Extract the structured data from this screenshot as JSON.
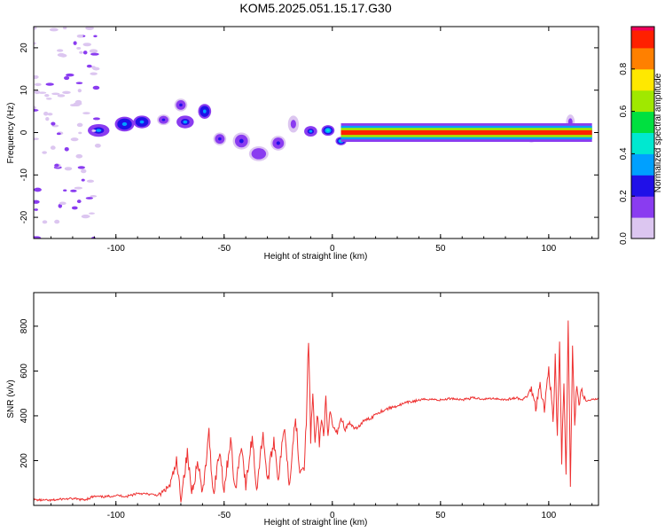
{
  "title": "KOM5.2025.051.15.17.G30",
  "chart_data": [
    {
      "type": "heatmap",
      "xlabel": "Height of straight line (km)",
      "ylabel": "Frequency (Hz)",
      "xlim": [
        -138,
        123
      ],
      "ylim": [
        -25,
        25
      ],
      "xticks": [
        -100,
        -50,
        0,
        50,
        100
      ],
      "yticks": [
        -20,
        -10,
        0,
        10,
        20
      ],
      "colorbar": {
        "label": "Normalized spectral amplitude",
        "range": [
          0,
          1
        ],
        "ticks": [
          0.0,
          0.2,
          0.4,
          0.6,
          0.8
        ],
        "colors": [
          "#dcc6f0",
          "#8a3cf0",
          "#2010e8",
          "#00a0ff",
          "#00e8d0",
          "#00e040",
          "#a0e800",
          "#ffe800",
          "#ff8000",
          "#ff2000",
          "#f0005a"
        ]
      },
      "blobs": [
        {
          "x": -108,
          "y": 0.5,
          "w": 10,
          "h": 3,
          "v": 0.3
        },
        {
          "x": -96,
          "y": 2,
          "w": 9,
          "h": 3.5,
          "v": 0.35
        },
        {
          "x": -88,
          "y": 2.5,
          "w": 8,
          "h": 3,
          "v": 0.35
        },
        {
          "x": -78,
          "y": 3,
          "w": 6,
          "h": 2.5,
          "v": 0.25
        },
        {
          "x": -70,
          "y": 6.5,
          "w": 6,
          "h": 3,
          "v": 0.2
        },
        {
          "x": -68,
          "y": 2.5,
          "w": 8,
          "h": 3,
          "v": 0.3
        },
        {
          "x": -59,
          "y": 5,
          "w": 6,
          "h": 3.5,
          "v": 0.35
        },
        {
          "x": -52,
          "y": -1.5,
          "w": 6,
          "h": 3,
          "v": 0.22
        },
        {
          "x": -42,
          "y": -2,
          "w": 8,
          "h": 4,
          "v": 0.2
        },
        {
          "x": -34,
          "y": -5,
          "w": 9,
          "h": 3.5,
          "v": 0.18
        },
        {
          "x": -25,
          "y": -2.5,
          "w": 7,
          "h": 3.5,
          "v": 0.2
        },
        {
          "x": -18,
          "y": 2,
          "w": 5,
          "h": 4,
          "v": 0.15
        },
        {
          "x": -10,
          "y": 0.3,
          "w": 6,
          "h": 2.5,
          "v": 0.3
        },
        {
          "x": -2,
          "y": 0.5,
          "w": 6,
          "h": 2.5,
          "v": 0.4
        },
        {
          "x": 4,
          "y": -2,
          "w": 5,
          "h": 2,
          "v": 0.4
        },
        {
          "x": 25,
          "y": 0,
          "w": 8,
          "h": 2,
          "v": 0.45
        },
        {
          "x": 60,
          "y": 0,
          "w": 12,
          "h": 1.5,
          "v": 0.6
        },
        {
          "x": 92,
          "y": -1,
          "w": 8,
          "h": 2.5,
          "v": 0.35
        },
        {
          "x": 103,
          "y": -0.8,
          "w": 7,
          "h": 2.5,
          "v": 0.35
        },
        {
          "x": 110,
          "y": 2.5,
          "w": 4,
          "h": 3.5,
          "v": 0.15
        }
      ],
      "ridge": {
        "x": [
          4,
          120
        ],
        "y": 0,
        "v": 0.95
      }
    },
    {
      "type": "line",
      "xlabel": "Height of straight line (km)",
      "ylabel": "SNR (v/v)",
      "xlim": [
        -138,
        123
      ],
      "ylim": [
        0,
        950
      ],
      "xticks": [
        -100,
        -50,
        0,
        50,
        100
      ],
      "yticks": [
        200,
        400,
        600,
        800
      ],
      "color": "#ee3030",
      "x": [
        -138,
        -130,
        -125,
        -120,
        -115,
        -110,
        -105,
        -100,
        -95,
        -90,
        -85,
        -80,
        -75,
        -72,
        -70,
        -67,
        -65,
        -62,
        -60,
        -57,
        -55,
        -52,
        -50,
        -47,
        -45,
        -42,
        -40,
        -37,
        -35,
        -32,
        -30,
        -27,
        -25,
        -22,
        -20,
        -17,
        -15,
        -13,
        -12,
        -11,
        -10,
        -9,
        -8,
        -7,
        -6,
        -5,
        -4,
        -3,
        -2,
        -1,
        0,
        2,
        4,
        6,
        8,
        10,
        12,
        15,
        18,
        20,
        25,
        30,
        35,
        40,
        45,
        50,
        55,
        60,
        65,
        70,
        75,
        80,
        85,
        88,
        90,
        92,
        94,
        96,
        98,
        100,
        102,
        103,
        104,
        105,
        106,
        107,
        108,
        109,
        110,
        111,
        112,
        113,
        114,
        115,
        117,
        120,
        123
      ],
      "y": [
        25,
        22,
        28,
        30,
        25,
        40,
        38,
        45,
        40,
        55,
        50,
        45,
        90,
        190,
        40,
        230,
        60,
        200,
        40,
        320,
        50,
        250,
        70,
        300,
        60,
        280,
        80,
        310,
        70,
        330,
        100,
        300,
        120,
        360,
        90,
        400,
        150,
        180,
        370,
        750,
        300,
        500,
        250,
        420,
        280,
        380,
        330,
        460,
        290,
        420,
        360,
        320,
        390,
        340,
        370,
        340,
        350,
        380,
        390,
        410,
        430,
        445,
        460,
        470,
        475,
        470,
        478,
        472,
        480,
        475,
        478,
        472,
        480,
        470,
        490,
        520,
        440,
        550,
        420,
        620,
        380,
        650,
        300,
        720,
        200,
        540,
        110,
        840,
        60,
        700,
        380,
        550,
        440,
        520,
        465,
        470,
        480
      ]
    }
  ]
}
